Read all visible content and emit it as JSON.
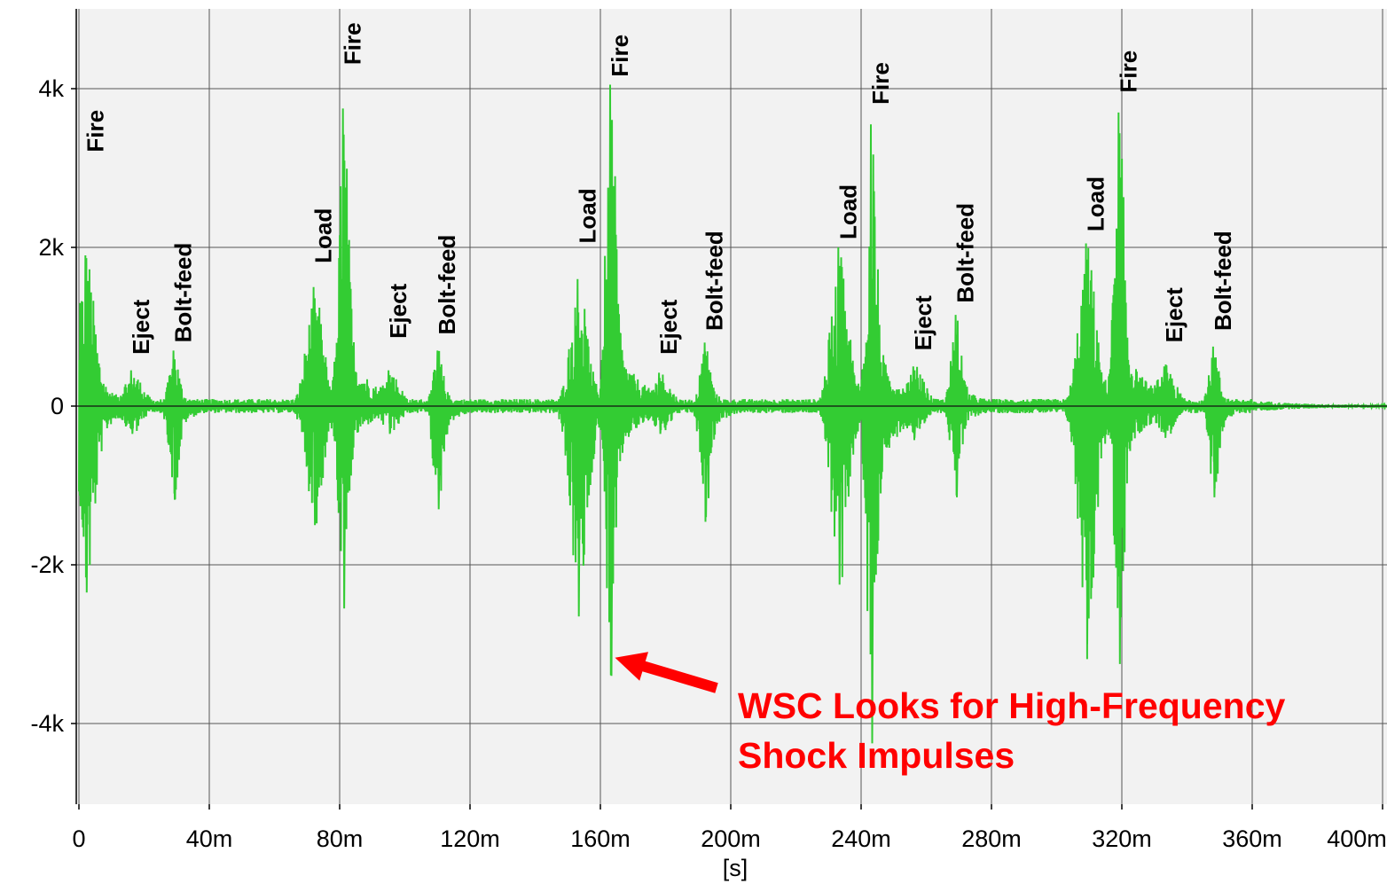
{
  "chart_data": {
    "type": "line",
    "xlabel": "[s]",
    "ylabel": "",
    "xlim": [
      0,
      0.4
    ],
    "ylim": [
      -5000,
      5000
    ],
    "grid": true,
    "x_ticks": [
      {
        "value": 0,
        "label": "0"
      },
      {
        "value": 0.04,
        "label": "40m"
      },
      {
        "value": 0.08,
        "label": "80m"
      },
      {
        "value": 0.12,
        "label": "120m"
      },
      {
        "value": 0.16,
        "label": "160m"
      },
      {
        "value": 0.2,
        "label": "200m"
      },
      {
        "value": 0.24,
        "label": "240m"
      },
      {
        "value": 0.28,
        "label": "280m"
      },
      {
        "value": 0.32,
        "label": "320m"
      },
      {
        "value": 0.36,
        "label": "360m"
      },
      {
        "value": 0.4,
        "label": "400m"
      }
    ],
    "y_ticks": [
      {
        "value": 4000,
        "label": "4k"
      },
      {
        "value": 2000,
        "label": "2k"
      },
      {
        "value": 0,
        "label": "0"
      },
      {
        "value": -2000,
        "label": "-2k"
      },
      {
        "value": -4000,
        "label": "-4k"
      }
    ],
    "series_color": "#33cc33",
    "events": [
      {
        "t": 0.002,
        "amp": 1900,
        "neg": -2350,
        "w": 0.0025,
        "label": "Fire",
        "label_y": 3200
      },
      {
        "t": 0.016,
        "amp": 450,
        "neg": -350,
        "w": 0.003,
        "label": "Eject",
        "label_y": 650
      },
      {
        "t": 0.029,
        "amp": 700,
        "neg": -1180,
        "w": 0.0015,
        "label": "Bolt-feed",
        "label_y": 800
      },
      {
        "t": 0.072,
        "amp": 1500,
        "neg": -1500,
        "w": 0.0025,
        "label": "Load",
        "label_y": 1800
      },
      {
        "t": 0.081,
        "amp": 3750,
        "neg": -2550,
        "w": 0.0015,
        "label": "Fire",
        "label_y": 4300
      },
      {
        "t": 0.095,
        "amp": 450,
        "neg": -350,
        "w": 0.003,
        "label": "Eject",
        "label_y": 850
      },
      {
        "t": 0.11,
        "amp": 700,
        "neg": -1300,
        "w": 0.0015,
        "label": "Bolt-feed",
        "label_y": 900
      },
      {
        "t": 0.153,
        "amp": 1600,
        "neg": -2650,
        "w": 0.0025,
        "label": "Load",
        "label_y": 2050
      },
      {
        "t": 0.163,
        "amp": 4050,
        "neg": -3400,
        "w": 0.0015,
        "label": "Fire",
        "label_y": 4150
      },
      {
        "t": 0.178,
        "amp": 420,
        "neg": -350,
        "w": 0.003,
        "label": "Eject",
        "label_y": 650
      },
      {
        "t": 0.192,
        "amp": 800,
        "neg": -1400,
        "w": 0.0015,
        "label": "Bolt-feed",
        "label_y": 950
      },
      {
        "t": 0.233,
        "amp": 2000,
        "neg": -2250,
        "w": 0.0025,
        "label": "Load",
        "label_y": 2100
      },
      {
        "t": 0.243,
        "amp": 3550,
        "neg": -4250,
        "w": 0.0015,
        "label": "Fire",
        "label_y": 3800
      },
      {
        "t": 0.256,
        "amp": 500,
        "neg": -400,
        "w": 0.003,
        "label": "Eject",
        "label_y": 700
      },
      {
        "t": 0.269,
        "amp": 1150,
        "neg": -1150,
        "w": 0.0015,
        "label": "Bolt-feed",
        "label_y": 1300
      },
      {
        "t": 0.309,
        "amp": 2050,
        "neg": -3000,
        "w": 0.0025,
        "label": "Load",
        "label_y": 2200
      },
      {
        "t": 0.319,
        "amp": 3700,
        "neg": -3250,
        "w": 0.0015,
        "label": "Fire",
        "label_y": 3950
      },
      {
        "t": 0.333,
        "amp": 500,
        "neg": -400,
        "w": 0.003,
        "label": "Eject",
        "label_y": 800
      },
      {
        "t": 0.348,
        "amp": 750,
        "neg": -1150,
        "w": 0.0015,
        "label": "Bolt-feed",
        "label_y": 950
      }
    ],
    "annotation": {
      "lines": [
        "WSC Looks for High-Frequency",
        "Shock Impulses"
      ],
      "color": "#ff0000",
      "arrow_target": {
        "t": 0.1645,
        "v": -3170
      }
    }
  }
}
